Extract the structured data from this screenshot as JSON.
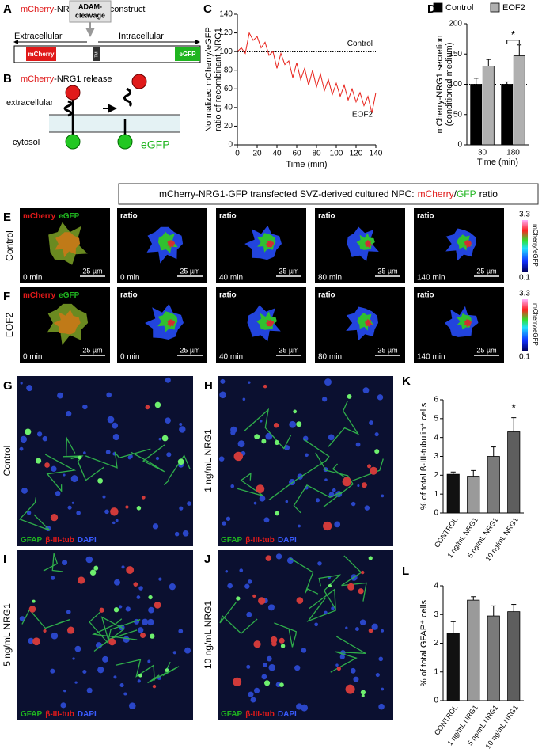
{
  "figure": {
    "panel_labels": [
      "A",
      "B",
      "C",
      "D",
      "E",
      "F",
      "G",
      "H",
      "I",
      "J",
      "K",
      "L"
    ],
    "construct": {
      "title": [
        "mCherry",
        "-NRG1-",
        "eGFP",
        "construct"
      ],
      "extracellular": "Extracellular",
      "intracellular": "Intracellular",
      "cleavage": [
        "ADAM-",
        "cleavage"
      ],
      "domains": [
        "mCherry",
        "TM",
        "eGFP"
      ]
    },
    "release": {
      "title": [
        "mCherry",
        "-NRG1 release"
      ],
      "extracellular": "extracellular",
      "cytosol": "cytosol",
      "egfp": "eGFP"
    },
    "imaging": {
      "header": [
        "mCherry-NRG1-GFP transfected SVZ-derived cultured NPC:",
        "mCherry",
        "/",
        "GFP",
        "ratio"
      ],
      "rows": [
        "Control",
        "EOF2"
      ],
      "channel_labels": [
        "mCherry",
        "eGFP"
      ],
      "ratio_label": "ratio",
      "times": [
        "0 min",
        "0 min",
        "40 min",
        "80 min",
        "140 min"
      ],
      "scale_bar": "25 µm",
      "colorbar": {
        "max": 3.3,
        "min": 0.1,
        "label": "mCherry/eGFP"
      }
    },
    "staining": {
      "conditions": [
        "Control",
        "1 ng/mL NRG1",
        "5 ng/mL NRG1",
        "10 ng/mL NRG1"
      ],
      "stains": [
        "GFAP",
        "β-III-tub",
        "DAPI"
      ]
    }
  },
  "chart_data": [
    {
      "type": "line",
      "xlabel": "Time (min)",
      "ylabel": [
        "Normalized mCherry/eGFP",
        "ratio of recombinant NRG1"
      ],
      "xlim": [
        0,
        140
      ],
      "xticks": [
        0,
        20,
        40,
        60,
        80,
        100,
        120,
        140
      ],
      "ylim": [
        0,
        140
      ],
      "yticks": [
        0,
        20,
        40,
        60,
        80,
        100,
        120,
        140
      ],
      "series": [
        {
          "name": "Control",
          "color": "#000000",
          "dash": true,
          "x": [
            0,
            140
          ],
          "values": [
            100,
            100
          ]
        },
        {
          "name": "EOF2",
          "color": "#e8221b",
          "dash": false,
          "x": [
            0,
            4,
            8,
            12,
            16,
            20,
            24,
            28,
            32,
            36,
            40,
            44,
            48,
            52,
            56,
            60,
            64,
            68,
            72,
            76,
            80,
            84,
            88,
            92,
            96,
            100,
            104,
            108,
            112,
            116,
            120,
            124,
            128,
            132,
            136,
            140
          ],
          "values": [
            100,
            104,
            98,
            120,
            112,
            116,
            104,
            110,
            96,
            100,
            82,
            98,
            86,
            90,
            72,
            88,
            70,
            82,
            64,
            80,
            62,
            76,
            58,
            70,
            54,
            66,
            52,
            64,
            48,
            60,
            46,
            56,
            42,
            52,
            34,
            56
          ]
        }
      ]
    },
    {
      "type": "bar",
      "legend": "top",
      "xlabel": "Time (min)",
      "ylabel": [
        "mCherry-NRG1 secretion",
        "(conditioned medium)"
      ],
      "categories": [
        "30",
        "180"
      ],
      "ylim": [
        0,
        200
      ],
      "yticks": [
        0,
        50,
        100,
        150,
        200
      ],
      "reference_line": 100,
      "annotation": "*",
      "series": [
        {
          "name": "Control",
          "color": "#000000",
          "values": [
            100,
            100
          ],
          "errors": [
            10,
            4
          ]
        },
        {
          "name": "EOF2",
          "color": "#b0b0b0",
          "values": [
            130,
            147
          ],
          "errors": [
            11,
            18
          ]
        }
      ]
    },
    {
      "type": "bar",
      "ylabel": "% of total ß-III-tubulin⁺ cells",
      "categories": [
        "CONTROL",
        "1 ng/mL NRG1",
        "5 ng/mL NRG1",
        "10 ng/mL NRG1"
      ],
      "values": [
        2.05,
        1.95,
        3.0,
        4.3
      ],
      "errors": [
        0.12,
        0.3,
        0.5,
        0.75
      ],
      "colors": [
        "#111111",
        "#9a9a9a",
        "#7a7a7a",
        "#5e5e5e"
      ],
      "ylim": [
        0,
        6
      ],
      "yticks": [
        0,
        1,
        2,
        3,
        4,
        5,
        6
      ],
      "annotation": "*"
    },
    {
      "type": "bar",
      "ylabel": "% of total GFAP⁺ cells",
      "categories": [
        "CONTROL",
        "1 ng/mL NRG1",
        "5 ng/mL NRG1",
        "10 ng/mL NRG1"
      ],
      "values": [
        2.35,
        3.5,
        2.95,
        3.1
      ],
      "errors": [
        0.4,
        0.12,
        0.35,
        0.25
      ],
      "colors": [
        "#111111",
        "#9a9a9a",
        "#7a7a7a",
        "#5e5e5e"
      ],
      "ylim": [
        0,
        4
      ],
      "yticks": [
        0,
        1,
        2,
        3,
        4
      ]
    }
  ]
}
